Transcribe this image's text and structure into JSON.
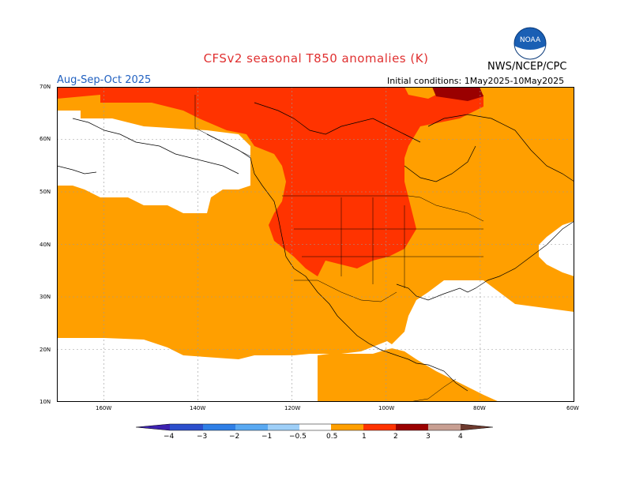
{
  "header": {
    "title": "CFSv2 seasonal T850 anomalies (K)",
    "agency": "NWS/NCEP/CPC",
    "logo_text": "NOAA",
    "season": "Aug-Sep-Oct 2025",
    "initial_conditions": "Initial conditions: 1May2025-10May2025"
  },
  "map": {
    "lat_labels": [
      "70N",
      "60N",
      "50N",
      "40N",
      "30N",
      "20N",
      "10N"
    ],
    "lon_labels": [
      "160W",
      "140W",
      "120W",
      "100W",
      "80W",
      "60W"
    ],
    "lat_range": [
      10,
      70
    ],
    "lon_range": [
      -170,
      -60
    ],
    "colors": {
      "land_border": "#000000",
      "white": "#ffffff",
      "anom_0_5_to_1": "#ff9f00",
      "anom_1_to_2": "#ff3300",
      "anom_2_to_3": "#9a0000"
    }
  },
  "colorbar": {
    "labels": [
      "−4",
      "−3",
      "−2",
      "−1",
      "−0.5",
      "0.5",
      "1",
      "2",
      "3",
      "4"
    ],
    "colors": [
      "#3d22b0",
      "#2c4fcc",
      "#2f7fe6",
      "#59a9f2",
      "#9ecff8",
      "#ffffff",
      "#ff9f00",
      "#ff3300",
      "#9a0000",
      "#c89f92",
      "#6d3a2e"
    ]
  }
}
